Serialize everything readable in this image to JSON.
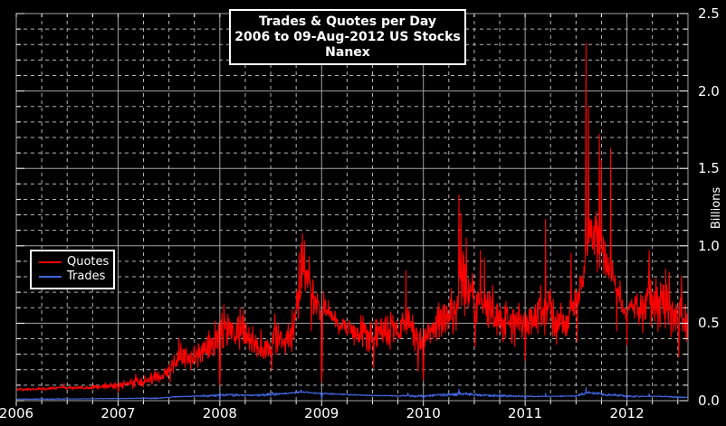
{
  "window": {
    "background": "#000000",
    "text_color": "#ffffff"
  },
  "title_box": {
    "lines": [
      "Trades & Quotes per Day",
      "2006 to 09-Aug-2012 US Stocks",
      "Nanex"
    ]
  },
  "legend": {
    "items": [
      {
        "label": "Quotes",
        "color": "#ff0000"
      },
      {
        "label": "Trades",
        "color": "#4166e0"
      }
    ]
  },
  "chart_data": {
    "type": "line",
    "title": "Trades & Quotes per Day",
    "subtitle": "2006 to 09-Aug-2012 US Stocks",
    "source": "Nanex",
    "xlabel": "",
    "ylabel": "Billions",
    "x_range": [
      2006,
      2012.6
    ],
    "y_range": [
      0,
      2.5
    ],
    "x_major_step": 1,
    "x_minor_step": 0.25,
    "y_major_step": 0.5,
    "y_minor_step": 0.1,
    "grid": {
      "major_color": "#a2a2a2",
      "minor_color": "#b4b4b4",
      "frame_color": "#a2a2a2",
      "tick_color": "#f2f2f2",
      "minor_dash": "4 4",
      "background": "#000000"
    },
    "x_ticks": [
      {
        "t": 2006,
        "label": "2006"
      },
      {
        "t": 2007,
        "label": "2007"
      },
      {
        "t": 2008,
        "label": "2008"
      },
      {
        "t": 2009,
        "label": "2009"
      },
      {
        "t": 2010,
        "label": "2010"
      },
      {
        "t": 2011,
        "label": "2011"
      },
      {
        "t": 2012,
        "label": "2012"
      }
    ],
    "y_ticks": [
      {
        "v": 2.5,
        "label": "2.5"
      },
      {
        "v": 2.0,
        "label": "2.0"
      },
      {
        "v": 1.5,
        "label": "1.5"
      },
      {
        "v": 1.0,
        "label": "1.0"
      },
      {
        "v": 0.5,
        "label": "0.5"
      },
      {
        "v": 0.0,
        "label": "0.0"
      }
    ],
    "legend_position": "left-middle",
    "series": [
      {
        "name": "Trades",
        "color": "#4166e0",
        "units": "billions per day",
        "noise": 0.11,
        "keyframes": [
          [
            2006.0,
            0.01
          ],
          [
            2006.5,
            0.011
          ],
          [
            2007.0,
            0.014
          ],
          [
            2007.4,
            0.016
          ],
          [
            2007.6,
            0.026
          ],
          [
            2007.9,
            0.032
          ],
          [
            2008.0,
            0.036
          ],
          [
            2008.4,
            0.035
          ],
          [
            2008.8,
            0.055
          ],
          [
            2009.0,
            0.046
          ],
          [
            2009.3,
            0.038
          ],
          [
            2009.6,
            0.032
          ],
          [
            2010.0,
            0.03
          ],
          [
            2010.37,
            0.044
          ],
          [
            2010.6,
            0.034
          ],
          [
            2011.0,
            0.027
          ],
          [
            2011.5,
            0.03
          ],
          [
            2011.62,
            0.052
          ],
          [
            2011.8,
            0.038
          ],
          [
            2012.0,
            0.028
          ],
          [
            2012.3,
            0.028
          ],
          [
            2012.6,
            0.021
          ]
        ],
        "spikes": [
          [
            2008.8,
            0.07
          ],
          [
            2009.85,
            0.05
          ],
          [
            2010.35,
            0.075
          ],
          [
            2011.2,
            0.048
          ],
          [
            2011.6,
            0.085
          ],
          [
            2012.22,
            0.045
          ]
        ],
        "dips": [
          [
            2007.0,
            0.006
          ],
          [
            2008.0,
            0.012
          ],
          [
            2009.0,
            0.015
          ],
          [
            2010.0,
            0.012
          ],
          [
            2011.0,
            0.01
          ],
          [
            2012.0,
            0.01
          ]
        ]
      },
      {
        "name": "Quotes",
        "color": "#ff0000",
        "units": "billions per day",
        "noise": 0.13,
        "keyframes": [
          [
            2006.0,
            0.072
          ],
          [
            2006.25,
            0.075
          ],
          [
            2006.45,
            0.085
          ],
          [
            2006.55,
            0.082
          ],
          [
            2006.75,
            0.082
          ],
          [
            2006.95,
            0.095
          ],
          [
            2007.0,
            0.1
          ],
          [
            2007.15,
            0.115
          ],
          [
            2007.3,
            0.135
          ],
          [
            2007.45,
            0.175
          ],
          [
            2007.55,
            0.24
          ],
          [
            2007.62,
            0.3
          ],
          [
            2007.7,
            0.26
          ],
          [
            2007.8,
            0.3
          ],
          [
            2007.9,
            0.36
          ],
          [
            2007.97,
            0.4
          ],
          [
            2008.05,
            0.46
          ],
          [
            2008.15,
            0.4
          ],
          [
            2008.22,
            0.46
          ],
          [
            2008.3,
            0.38
          ],
          [
            2008.4,
            0.31
          ],
          [
            2008.5,
            0.34
          ],
          [
            2008.57,
            0.42
          ],
          [
            2008.63,
            0.37
          ],
          [
            2008.7,
            0.44
          ],
          [
            2008.77,
            0.62
          ],
          [
            2008.82,
            0.88
          ],
          [
            2008.88,
            0.78
          ],
          [
            2008.95,
            0.62
          ],
          [
            2009.05,
            0.58
          ],
          [
            2009.15,
            0.5
          ],
          [
            2009.3,
            0.45
          ],
          [
            2009.45,
            0.43
          ],
          [
            2009.6,
            0.44
          ],
          [
            2009.75,
            0.47
          ],
          [
            2009.85,
            0.52
          ],
          [
            2009.95,
            0.38
          ],
          [
            2010.05,
            0.44
          ],
          [
            2010.2,
            0.52
          ],
          [
            2010.3,
            0.54
          ],
          [
            2010.37,
            0.8
          ],
          [
            2010.45,
            0.68
          ],
          [
            2010.55,
            0.64
          ],
          [
            2010.65,
            0.58
          ],
          [
            2010.8,
            0.52
          ],
          [
            2010.9,
            0.53
          ],
          [
            2010.97,
            0.47
          ],
          [
            2011.05,
            0.52
          ],
          [
            2011.15,
            0.57
          ],
          [
            2011.22,
            0.6
          ],
          [
            2011.3,
            0.51
          ],
          [
            2011.4,
            0.53
          ],
          [
            2011.5,
            0.63
          ],
          [
            2011.57,
            0.8
          ],
          [
            2011.63,
            1.08
          ],
          [
            2011.7,
            1.05
          ],
          [
            2011.78,
            0.92
          ],
          [
            2011.85,
            0.83
          ],
          [
            2011.92,
            0.7
          ],
          [
            2011.98,
            0.57
          ],
          [
            2012.08,
            0.6
          ],
          [
            2012.2,
            0.67
          ],
          [
            2012.3,
            0.62
          ],
          [
            2012.4,
            0.63
          ],
          [
            2012.5,
            0.56
          ],
          [
            2012.6,
            0.48
          ]
        ],
        "spikes": [
          [
            2006.47,
            0.11
          ],
          [
            2007.6,
            0.4
          ],
          [
            2007.62,
            0.37
          ],
          [
            2008.04,
            0.62
          ],
          [
            2008.2,
            0.6
          ],
          [
            2008.54,
            0.56
          ],
          [
            2008.78,
            0.95
          ],
          [
            2008.8,
            1.01
          ],
          [
            2008.88,
            0.93
          ],
          [
            2009.02,
            0.7
          ],
          [
            2009.83,
            0.84
          ],
          [
            2010.15,
            0.63
          ],
          [
            2010.35,
            1.33
          ],
          [
            2010.37,
            1.21
          ],
          [
            2010.42,
            1.05
          ],
          [
            2010.56,
            0.97
          ],
          [
            2010.6,
            0.92
          ],
          [
            2011.2,
            1.17
          ],
          [
            2011.45,
            0.95
          ],
          [
            2011.6,
            2.31
          ],
          [
            2011.62,
            1.9
          ],
          [
            2011.73,
            1.72
          ],
          [
            2011.75,
            1.55
          ],
          [
            2011.84,
            1.63
          ],
          [
            2012.22,
            0.97
          ],
          [
            2012.38,
            0.85
          ]
        ],
        "dips": [
          [
            2007.0,
            0.055
          ],
          [
            2007.51,
            0.12
          ],
          [
            2008.0,
            0.1
          ],
          [
            2008.51,
            0.2
          ],
          [
            2008.9,
            0.45
          ],
          [
            2009.0,
            0.12
          ],
          [
            2009.51,
            0.21
          ],
          [
            2009.95,
            0.19
          ],
          [
            2010.0,
            0.13
          ],
          [
            2010.51,
            0.35
          ],
          [
            2010.9,
            0.35
          ],
          [
            2011.0,
            0.26
          ],
          [
            2011.51,
            0.38
          ],
          [
            2011.9,
            0.45
          ],
          [
            2012.0,
            0.36
          ],
          [
            2012.51,
            0.28
          ]
        ]
      }
    ]
  }
}
